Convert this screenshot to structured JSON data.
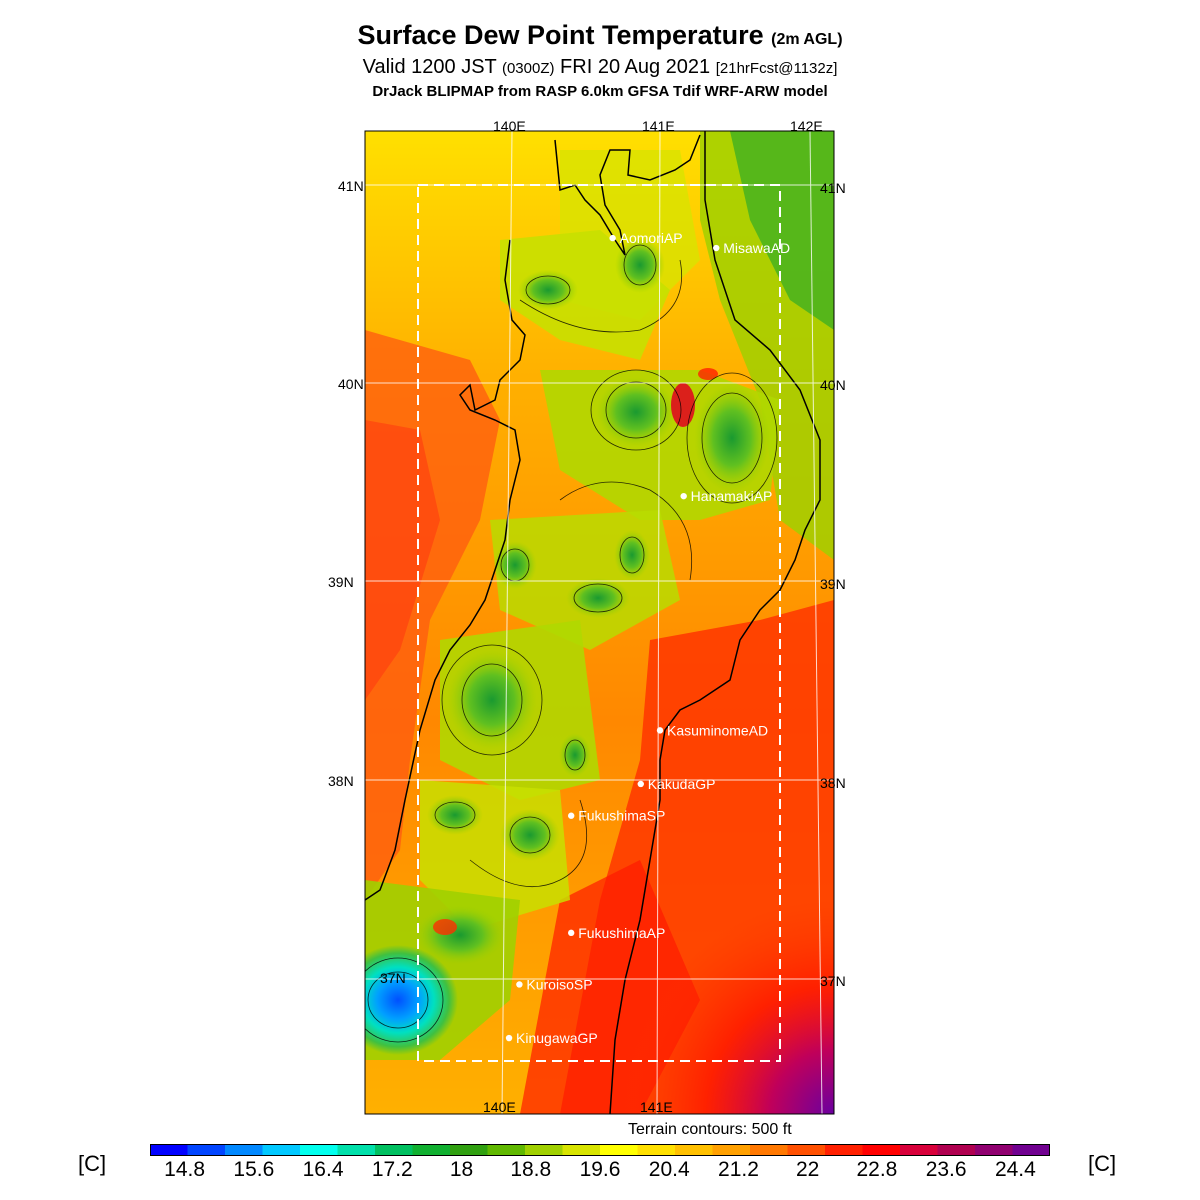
{
  "title": {
    "main": "Surface Dew Point Temperature",
    "main_suffix": "(2m AGL)",
    "valid_prefix": "Valid 1200 JST",
    "valid_z": "(0300Z)",
    "valid_date": "FRI 20 Aug 2021",
    "forecast": "[21hrFcst@1132z]",
    "model": "DrJack BLIPMAP from RASP 6.0km GFSA Tdif WRF-ARW model"
  },
  "axes": {
    "lon_labels_top": [
      "140E",
      "141E",
      "142E"
    ],
    "lon_labels_bottom": [
      "140E",
      "141E"
    ],
    "lat_labels": [
      "41N",
      "40N",
      "39N",
      "38N",
      "37N"
    ]
  },
  "stations": [
    {
      "name": "AomoriAP",
      "lon": 140.68,
      "lat": 40.73
    },
    {
      "name": "MisawaAD",
      "lon": 141.38,
      "lat": 40.68
    },
    {
      "name": "HanamakiAP",
      "lon": 141.16,
      "lat": 39.43
    },
    {
      "name": "KasuminomeAD",
      "lon": 141.0,
      "lat": 38.25
    },
    {
      "name": "KakudaGP",
      "lon": 140.87,
      "lat": 37.98
    },
    {
      "name": "FukushimaSP",
      "lon": 140.4,
      "lat": 37.82
    },
    {
      "name": "FukushimaAP",
      "lon": 140.4,
      "lat": 37.23
    },
    {
      "name": "KuroisoSP",
      "lon": 140.05,
      "lat": 36.97
    },
    {
      "name": "KinugawaGP",
      "lon": 139.98,
      "lat": 36.7
    }
  ],
  "terrain_note": "Terrain contours: 500 ft",
  "colorbar": {
    "unit": "[C]",
    "ticks": [
      "14.8",
      "15.6",
      "16.4",
      "17.2",
      "18",
      "18.8",
      "19.6",
      "20.4",
      "21.2",
      "22",
      "22.8",
      "23.6",
      "24.4"
    ],
    "colors": [
      "#0000ff",
      "#0044ff",
      "#0088ff",
      "#00c8ff",
      "#00ffee",
      "#00e0aa",
      "#00c060",
      "#10b030",
      "#30a010",
      "#60b800",
      "#a0d000",
      "#d8e400",
      "#ffff00",
      "#ffe000",
      "#ffc000",
      "#ffa000",
      "#ff7800",
      "#ff5000",
      "#ff2000",
      "#ff0000",
      "#d8003a",
      "#b00050",
      "#900070",
      "#700090"
    ]
  },
  "colors": {
    "land_mid": "#ffa000",
    "coast_warm": "#ff3000",
    "mountain_green": "#40b020",
    "extreme_low": "#0060ff",
    "extreme_high": "#8000a0"
  }
}
